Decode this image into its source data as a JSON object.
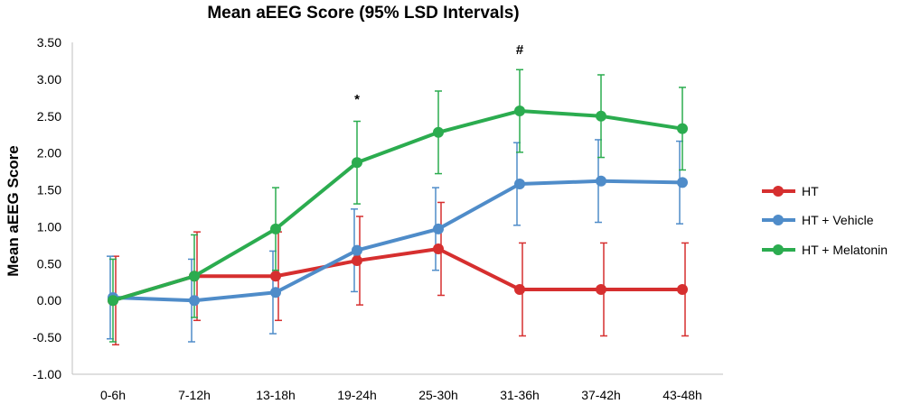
{
  "chart_data": {
    "type": "line",
    "title": "Mean aEEG Score (95% LSD Intervals)",
    "xlabel": "",
    "ylabel": "Mean aEEG Score",
    "categories": [
      "0-6h",
      "7-12h",
      "13-18h",
      "19-24h",
      "25-30h",
      "31-36h",
      "37-42h",
      "43-48h"
    ],
    "ylim": [
      -1.0,
      3.5
    ],
    "yticks": [
      -1.0,
      -0.5,
      0.0,
      0.5,
      1.0,
      1.5,
      2.0,
      2.5,
      3.0,
      3.5
    ],
    "ytick_labels": [
      "-1.00",
      "-0.50",
      "0.00",
      "0.50",
      "1.00",
      "1.50",
      "2.00",
      "2.50",
      "3.00",
      "3.50"
    ],
    "grid": false,
    "legend_position": "right",
    "series": [
      {
        "name": "HT",
        "color": "#d62f2f",
        "values": [
          0.0,
          0.33,
          0.33,
          0.54,
          0.7,
          0.15,
          0.15,
          0.15
        ],
        "error": [
          0.6,
          0.6,
          0.6,
          0.6,
          0.63,
          0.63,
          0.63,
          0.63
        ]
      },
      {
        "name": "HT + Vehicle",
        "color": "#4f8cc9",
        "values": [
          0.04,
          0.0,
          0.11,
          0.68,
          0.97,
          1.58,
          1.62,
          1.6
        ],
        "error": [
          0.56,
          0.56,
          0.56,
          0.56,
          0.56,
          0.56,
          0.56,
          0.56
        ]
      },
      {
        "name": "HT + Melatonin",
        "color": "#2bac4f",
        "values": [
          0.0,
          0.33,
          0.97,
          1.87,
          2.28,
          2.57,
          2.5,
          2.33
        ],
        "error": [
          0.56,
          0.56,
          0.56,
          0.56,
          0.56,
          0.56,
          0.56,
          0.56
        ]
      }
    ],
    "annotations": [
      {
        "text": "*",
        "category": "19-24h",
        "y": 2.67
      },
      {
        "text": "#",
        "category": "31-36h",
        "y": 3.34
      }
    ]
  }
}
